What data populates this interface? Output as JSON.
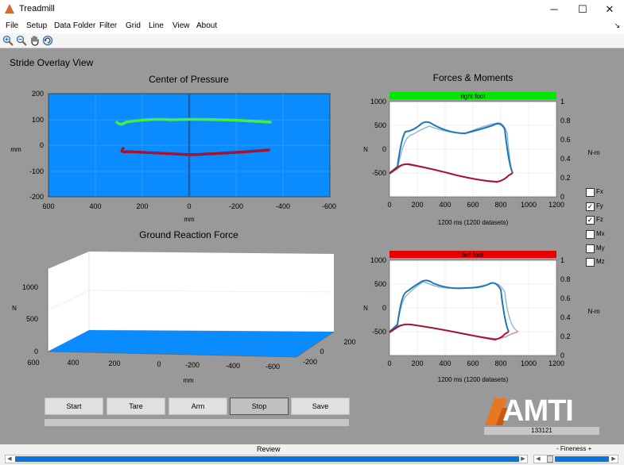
{
  "window": {
    "title": "Treadmill",
    "minimize": "─",
    "maximize": "☐",
    "close": "✕"
  },
  "menu": [
    "File",
    "Setup",
    "Data Folder",
    "Filter",
    "Grid",
    "Line",
    "View",
    "About"
  ],
  "menu_dock": "↘",
  "toolbar": [
    {
      "name": "zoom-in-icon",
      "glyph": "⊕"
    },
    {
      "name": "zoom-out-icon",
      "glyph": "⊖"
    },
    {
      "name": "pan-icon",
      "glyph": "✋"
    },
    {
      "name": "rotate-icon",
      "glyph": "↻"
    }
  ],
  "view_title": "Stride Overlay View",
  "cop": {
    "title": "Center of Pressure",
    "ylabel": "mm",
    "xlabel": "mm",
    "yticks": [
      "200",
      "100",
      "0",
      "-100",
      "-200"
    ],
    "xticks": [
      "600",
      "400",
      "200",
      "0",
      "-200",
      "-400",
      "-600"
    ]
  },
  "grf": {
    "title": "Ground Reaction Force",
    "zlabel": "N",
    "xlabel": "mm",
    "zticks": [
      "1000",
      "500",
      "0"
    ],
    "xticks": [
      "600",
      "400",
      "200",
      "0",
      "-200",
      "-400",
      "-600"
    ],
    "yticks": [
      "200",
      "0",
      "-200"
    ]
  },
  "forces": {
    "title": "Forces & Moments",
    "right_label": "right foot",
    "left_label": "left foot",
    "right_color": "#00e600",
    "left_color": "#e60000",
    "ylabel_left": "N",
    "ylabel_right": "N-m",
    "yticks_left": [
      "1000",
      "500",
      "0",
      "-500"
    ],
    "yticks_right": [
      "1",
      "0.8",
      "0.6",
      "0.4",
      "0.2",
      "0"
    ],
    "xticks": [
      "0",
      "200",
      "400",
      "600",
      "800",
      "1000",
      "1200"
    ],
    "xlabel": "1200 ms (1200 datasets)"
  },
  "checkboxes": [
    {
      "label": "Fx",
      "checked": false
    },
    {
      "label": "Fy",
      "checked": true
    },
    {
      "label": "Fz",
      "checked": true
    },
    {
      "label": "Mx",
      "checked": false
    },
    {
      "label": "My",
      "checked": false
    },
    {
      "label": "Mz",
      "checked": false
    }
  ],
  "buttons": {
    "start": "Start",
    "tare": "Tare",
    "arm": "Arm",
    "stop": "Stop",
    "save": "Save"
  },
  "logo": {
    "text": "AMTI",
    "serial": "133121"
  },
  "bottom": {
    "review": "Review",
    "fineness": "- Fineness +",
    "left_arrow": "◀",
    "right_arrow": "▶"
  },
  "colors": {
    "plot_bg": "#0a8cff",
    "figure_bg": "#999999",
    "fz_line": "#1f77b4",
    "fy_line": "#a2142f"
  }
}
